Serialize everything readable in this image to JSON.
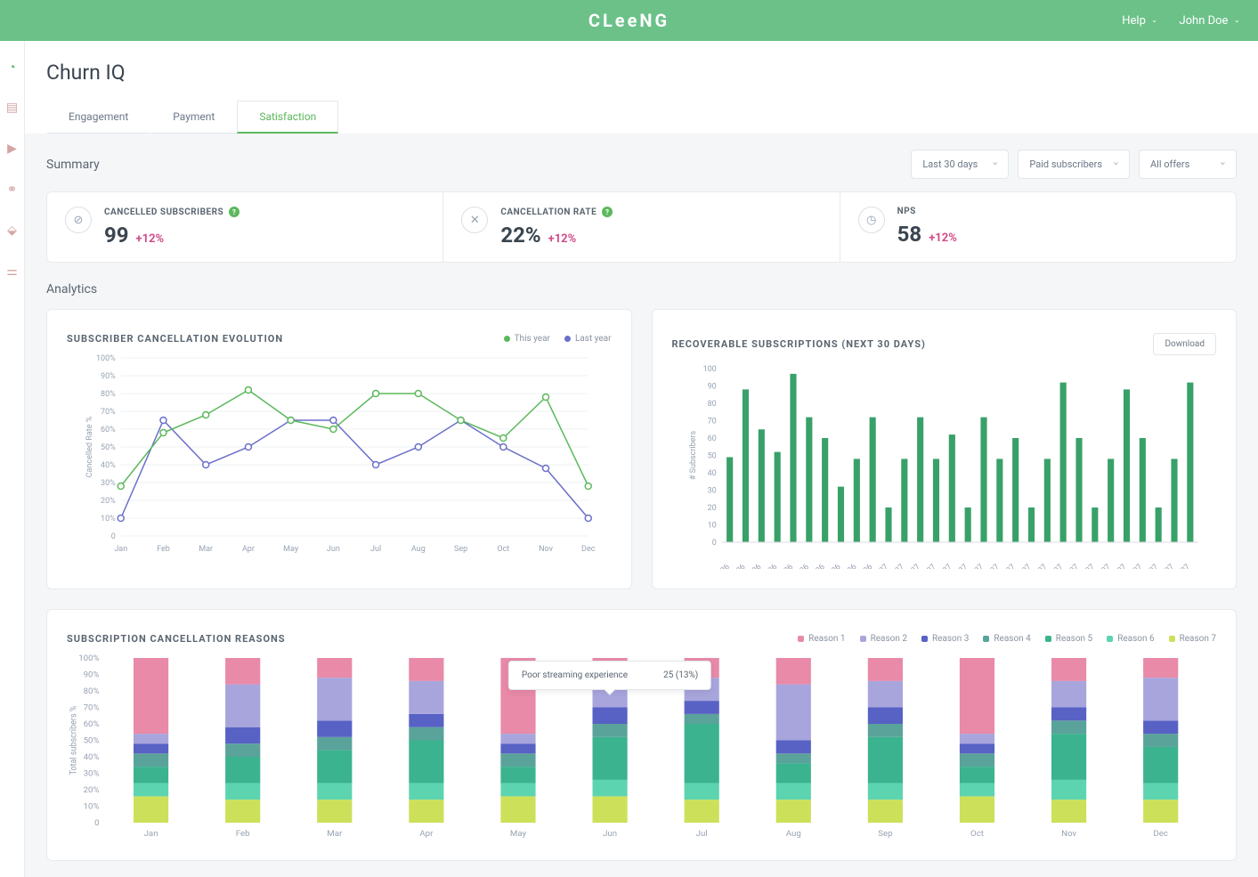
{
  "brand": "CLeeNG",
  "topbar": {
    "help": "Help",
    "user": "John Doe"
  },
  "page_title": "Churn IQ",
  "tabs": [
    {
      "label": "Engagement",
      "active": false
    },
    {
      "label": "Payment",
      "active": false
    },
    {
      "label": "Satisfaction",
      "active": true
    }
  ],
  "summary": {
    "title": "Summary",
    "filters": [
      {
        "label": "Last 30 days"
      },
      {
        "label": "Paid subscribers"
      },
      {
        "label": "All offers"
      }
    ],
    "cards": [
      {
        "icon": "users-slash",
        "label": "CANCELLED SUBSCRIBERS",
        "value": "99",
        "delta": "+12%",
        "help": true
      },
      {
        "icon": "x",
        "label": "CANCELLATION RATE",
        "value": "22%",
        "delta": "+12%",
        "help": true
      },
      {
        "icon": "gauge",
        "label": "NPS",
        "value": "58",
        "delta": "+12%",
        "help": false
      }
    ]
  },
  "analytics_title": "Analytics",
  "evolution_chart": {
    "title": "SUBSCRIBER CANCELLATION EVOLUTION",
    "type": "line",
    "legend": [
      {
        "label": "This year",
        "color": "#5cb85c"
      },
      {
        "label": "Last year",
        "color": "#6b6fc9"
      }
    ],
    "x_labels": [
      "Jan",
      "Feb",
      "Mar",
      "Apr",
      "May",
      "Jun",
      "Jul",
      "Aug",
      "Sep",
      "Oct",
      "Nov",
      "Dec"
    ],
    "y_label": "Cancelled Rate %",
    "y_ticks": [
      0,
      "10%",
      "20%",
      "30%",
      "40%",
      "50%",
      "60%",
      "70%",
      "80%",
      "90%",
      "100%"
    ],
    "ylim": [
      0,
      100
    ],
    "this_year": [
      28,
      58,
      68,
      82,
      65,
      60,
      80,
      80,
      65,
      55,
      78,
      28
    ],
    "last_year": [
      10,
      65,
      40,
      50,
      65,
      65,
      40,
      50,
      65,
      50,
      38,
      10
    ],
    "line_colors": {
      "this_year": "#5cb85c",
      "last_year": "#6b6fc9"
    },
    "marker_style": "circle_hollow",
    "background_color": "#ffffff",
    "grid_color": "#eef0f3"
  },
  "recoverable_chart": {
    "title": "RECOVERABLE SUBSCRIPTIONS (NEXT 30 DAYS)",
    "type": "bar",
    "download_label": "Download",
    "y_label": "# Subscribers",
    "y_ticks": [
      0,
      10,
      20,
      30,
      40,
      50,
      60,
      70,
      80,
      90,
      100
    ],
    "ylim": [
      0,
      100
    ],
    "x_labels": [
      "21/06",
      "22/06",
      "23/06",
      "24/06",
      "25/06",
      "26/06",
      "27/06",
      "28/06",
      "29/06",
      "30/06",
      "01/07",
      "02/07",
      "03/07",
      "04/07",
      "05/07",
      "06/07",
      "07/07",
      "08/07",
      "09/07",
      "10/07",
      "11/07",
      "12/07",
      "13/07",
      "14/07",
      "15/07",
      "16/07",
      "17/07",
      "18/07",
      "19/07",
      "20/07"
    ],
    "values": [
      49,
      88,
      65,
      52,
      97,
      72,
      60,
      32,
      48,
      72,
      20,
      48,
      72,
      48,
      62,
      20,
      72,
      48,
      60,
      20,
      48,
      92,
      60,
      20,
      48,
      88,
      60,
      20,
      48,
      92
    ],
    "bar_color": "#38a169",
    "bar_width": 0.4,
    "background_color": "#ffffff"
  },
  "reasons_chart": {
    "title": "SUBSCRIPTION CANCELLATION REASONS",
    "type": "stacked_bar",
    "y_label": "Total subscribers %",
    "y_ticks": [
      "0",
      "10%",
      "20%",
      "30%",
      "40%",
      "50%",
      "60%",
      "70%",
      "80%",
      "90%",
      "100%"
    ],
    "x_labels": [
      "Jan",
      "Feb",
      "Mar",
      "Apr",
      "May",
      "Jun",
      "Jul",
      "Aug",
      "Sep",
      "Oct",
      "Nov",
      "Dec"
    ],
    "legend": [
      {
        "label": "Reason 1",
        "color": "#e88aa8"
      },
      {
        "label": "Reason 2",
        "color": "#a8a5dd"
      },
      {
        "label": "Reason 3",
        "color": "#5861c4"
      },
      {
        "label": "Reason 4",
        "color": "#5aa39a"
      },
      {
        "label": "Reason 5",
        "color": "#3bb38f"
      },
      {
        "label": "Reason 6",
        "color": "#5dd4b0"
      },
      {
        "label": "Reason 7",
        "color": "#cde05a"
      }
    ],
    "stacks": [
      [
        46,
        6,
        6,
        8,
        10,
        8,
        16
      ],
      [
        16,
        26,
        10,
        8,
        16,
        10,
        14
      ],
      [
        12,
        26,
        10,
        8,
        20,
        10,
        14
      ],
      [
        14,
        20,
        8,
        8,
        26,
        10,
        14
      ],
      [
        46,
        6,
        6,
        8,
        10,
        8,
        16
      ],
      [
        14,
        16,
        10,
        8,
        26,
        10,
        16
      ],
      [
        12,
        14,
        8,
        6,
        36,
        10,
        14
      ],
      [
        16,
        34,
        8,
        6,
        12,
        10,
        14
      ],
      [
        14,
        16,
        10,
        8,
        28,
        10,
        14
      ],
      [
        46,
        6,
        6,
        8,
        10,
        8,
        16
      ],
      [
        14,
        16,
        8,
        8,
        28,
        12,
        14
      ],
      [
        12,
        26,
        8,
        8,
        22,
        10,
        14
      ]
    ],
    "tooltip": {
      "label": "Poor streaming experience",
      "value": "25 (13%)",
      "month_index": 5
    }
  }
}
